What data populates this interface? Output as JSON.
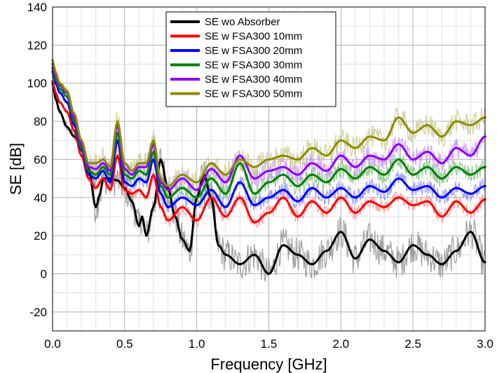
{
  "chart_data": {
    "type": "line",
    "title": "",
    "xlabel": "Frequency [GHz]",
    "ylabel": "SE [dB]",
    "xlim": [
      0.0,
      3.0
    ],
    "ylim": [
      -30,
      140
    ],
    "xticks": [
      "0.0",
      "0.5",
      "1.0",
      "1.5",
      "2.0",
      "2.5",
      "3.0"
    ],
    "yticks": [
      "-20",
      "0",
      "20",
      "40",
      "60",
      "80",
      "100",
      "120",
      "140"
    ],
    "grid": true,
    "legend_position": "top-center",
    "series": [
      {
        "name": "SE wo Absorber",
        "color": "#000000",
        "raw_color": "#8c8c8c",
        "x": [
          0.0,
          0.02,
          0.05,
          0.1,
          0.15,
          0.2,
          0.25,
          0.3,
          0.33,
          0.35,
          0.4,
          0.45,
          0.5,
          0.55,
          0.6,
          0.62,
          0.65,
          0.7,
          0.75,
          0.8,
          0.85,
          0.9,
          0.95,
          1.0,
          1.05,
          1.1,
          1.15,
          1.2,
          1.3,
          1.4,
          1.5,
          1.6,
          1.7,
          1.8,
          1.9,
          2.0,
          2.1,
          2.2,
          2.3,
          2.4,
          2.5,
          2.6,
          2.7,
          2.8,
          2.9,
          3.0
        ],
        "y": [
          100,
          92,
          85,
          77,
          72,
          67,
          55,
          35,
          42,
          50,
          50,
          49,
          45,
          38,
          25,
          30,
          20,
          35,
          60,
          45,
          30,
          18,
          12,
          40,
          52,
          40,
          15,
          10,
          5,
          10,
          0,
          15,
          10,
          5,
          12,
          22,
          8,
          18,
          12,
          6,
          15,
          10,
          5,
          12,
          22,
          6
        ]
      },
      {
        "name": "SE w FSA300 10mm",
        "color": "#ff0000",
        "raw_color": "#ff9090",
        "x": [
          0.0,
          0.02,
          0.05,
          0.1,
          0.15,
          0.2,
          0.25,
          0.3,
          0.35,
          0.4,
          0.45,
          0.5,
          0.55,
          0.6,
          0.65,
          0.7,
          0.75,
          0.8,
          0.9,
          1.0,
          1.1,
          1.2,
          1.3,
          1.4,
          1.5,
          1.6,
          1.7,
          1.8,
          1.9,
          2.0,
          2.1,
          2.2,
          2.3,
          2.4,
          2.5,
          2.6,
          2.7,
          2.8,
          2.9,
          3.0
        ],
        "y": [
          101,
          95,
          90,
          85,
          75,
          62,
          50,
          45,
          50,
          44,
          62,
          44,
          42,
          44,
          40,
          52,
          35,
          28,
          35,
          28,
          40,
          30,
          40,
          27,
          32,
          40,
          30,
          38,
          32,
          40,
          32,
          38,
          35,
          40,
          36,
          38,
          30,
          38,
          32,
          39
        ]
      },
      {
        "name": "SE w FSA300 20mm",
        "color": "#0000ff",
        "raw_color": "#8c8cff",
        "x": [
          0.0,
          0.02,
          0.05,
          0.1,
          0.15,
          0.2,
          0.25,
          0.3,
          0.35,
          0.4,
          0.45,
          0.5,
          0.55,
          0.6,
          0.65,
          0.7,
          0.75,
          0.8,
          0.9,
          1.0,
          1.1,
          1.2,
          1.3,
          1.4,
          1.5,
          1.6,
          1.7,
          1.8,
          1.9,
          2.0,
          2.1,
          2.2,
          2.3,
          2.4,
          2.5,
          2.6,
          2.7,
          2.8,
          2.9,
          3.0
        ],
        "y": [
          106,
          100,
          95,
          90,
          78,
          65,
          52,
          50,
          54,
          48,
          70,
          48,
          46,
          50,
          48,
          60,
          42,
          35,
          40,
          36,
          44,
          35,
          48,
          36,
          40,
          44,
          38,
          45,
          40,
          45,
          40,
          46,
          43,
          50,
          44,
          46,
          40,
          45,
          42,
          46
        ]
      },
      {
        "name": "SE w FSA300 30mm",
        "color": "#008000",
        "raw_color": "#7fc07f",
        "x": [
          0.0,
          0.02,
          0.05,
          0.1,
          0.15,
          0.2,
          0.25,
          0.3,
          0.35,
          0.4,
          0.45,
          0.5,
          0.55,
          0.6,
          0.65,
          0.7,
          0.75,
          0.8,
          0.9,
          1.0,
          1.1,
          1.2,
          1.3,
          1.4,
          1.5,
          1.6,
          1.7,
          1.8,
          1.9,
          2.0,
          2.1,
          2.2,
          2.3,
          2.4,
          2.5,
          2.6,
          2.7,
          2.8,
          2.9,
          3.0
        ],
        "y": [
          108,
          102,
          97,
          93,
          80,
          66,
          54,
          52,
          56,
          52,
          74,
          52,
          50,
          54,
          52,
          64,
          46,
          40,
          45,
          40,
          50,
          42,
          58,
          42,
          48,
          52,
          46,
          52,
          48,
          55,
          50,
          56,
          52,
          60,
          52,
          56,
          50,
          56,
          52,
          56
        ]
      },
      {
        "name": "SE w FSA300 40mm",
        "color": "#8b00ff",
        "raw_color": "#c890ff",
        "x": [
          0.0,
          0.02,
          0.05,
          0.1,
          0.15,
          0.2,
          0.25,
          0.3,
          0.35,
          0.4,
          0.45,
          0.5,
          0.55,
          0.6,
          0.65,
          0.7,
          0.75,
          0.8,
          0.9,
          1.0,
          1.1,
          1.2,
          1.3,
          1.4,
          1.5,
          1.6,
          1.7,
          1.8,
          1.9,
          2.0,
          2.1,
          2.2,
          2.3,
          2.4,
          2.5,
          2.6,
          2.7,
          2.8,
          2.9,
          3.0
        ],
        "y": [
          110,
          104,
          99,
          95,
          82,
          68,
          56,
          55,
          58,
          54,
          78,
          55,
          52,
          56,
          56,
          68,
          48,
          44,
          50,
          44,
          55,
          48,
          62,
          50,
          54,
          56,
          52,
          58,
          54,
          62,
          56,
          62,
          60,
          68,
          60,
          64,
          58,
          66,
          62,
          72
        ]
      },
      {
        "name": "SE w FSA300 50mm",
        "color": "#8b8b00",
        "raw_color": "#c8c88c",
        "x": [
          0.0,
          0.02,
          0.05,
          0.1,
          0.15,
          0.2,
          0.25,
          0.3,
          0.35,
          0.4,
          0.45,
          0.5,
          0.55,
          0.6,
          0.65,
          0.7,
          0.75,
          0.8,
          0.9,
          1.0,
          1.1,
          1.2,
          1.3,
          1.4,
          1.5,
          1.6,
          1.7,
          1.8,
          1.9,
          2.0,
          2.1,
          2.2,
          2.3,
          2.4,
          2.5,
          2.6,
          2.7,
          2.8,
          2.9,
          3.0
        ],
        "y": [
          112,
          106,
          100,
          96,
          84,
          70,
          58,
          58,
          60,
          56,
          80,
          58,
          54,
          58,
          58,
          70,
          50,
          46,
          52,
          48,
          58,
          52,
          60,
          56,
          60,
          62,
          60,
          66,
          62,
          70,
          66,
          72,
          70,
          82,
          74,
          78,
          72,
          80,
          78,
          82
        ]
      }
    ]
  }
}
